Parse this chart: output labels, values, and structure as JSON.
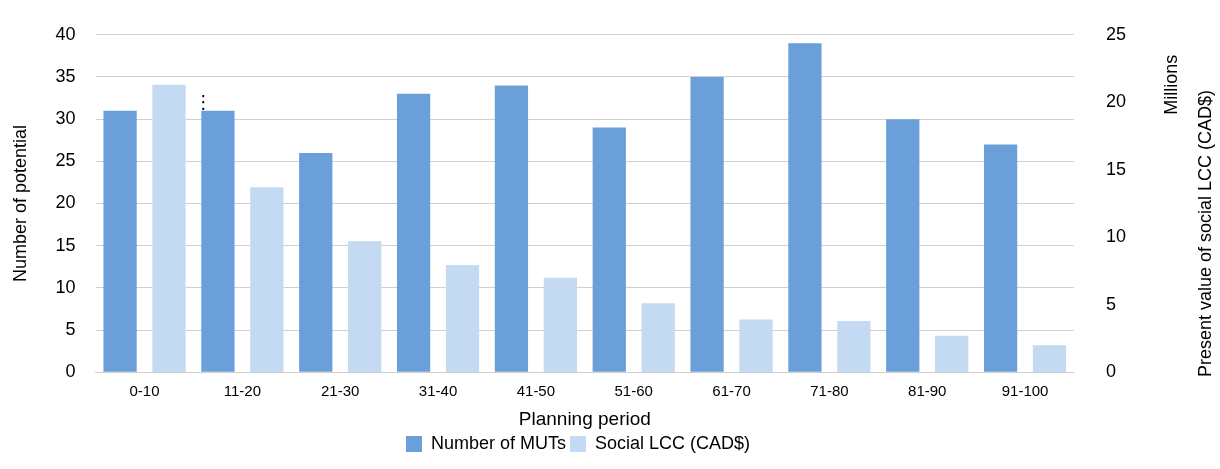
{
  "chart_data": {
    "type": "bar",
    "categories": [
      "0-10",
      "11-20",
      "21-30",
      "31-40",
      "41-50",
      "51-60",
      "61-70",
      "71-80",
      "81-90",
      "91-100"
    ],
    "series": [
      {
        "name": "Number of MUTs",
        "color": "#6a9fda",
        "values": [
          31,
          31,
          26,
          33,
          34,
          29,
          35,
          39,
          30,
          27
        ]
      },
      {
        "name": "Social LCC (CAD$)",
        "color": "#c3daf2",
        "axis": "y2",
        "values": [
          21.3,
          13.7,
          9.7,
          7.95,
          7.0,
          5.1,
          3.9,
          3.8,
          2.7,
          2.0
        ]
      }
    ],
    "xlabel": "Planning period",
    "ylabel": "Number of potential",
    "y2label": "Present value of social LCC (CAD$)",
    "ylim": [
      0,
      40
    ],
    "yticks": [
      0,
      5,
      10,
      15,
      20,
      25,
      30,
      35,
      40
    ],
    "y2lim": [
      0,
      25
    ],
    "y2ticks": [
      0,
      5,
      10,
      15,
      20,
      25
    ],
    "annotations": [
      "⋮",
      "Millions"
    ],
    "grid": "y",
    "legend": "bottom"
  }
}
